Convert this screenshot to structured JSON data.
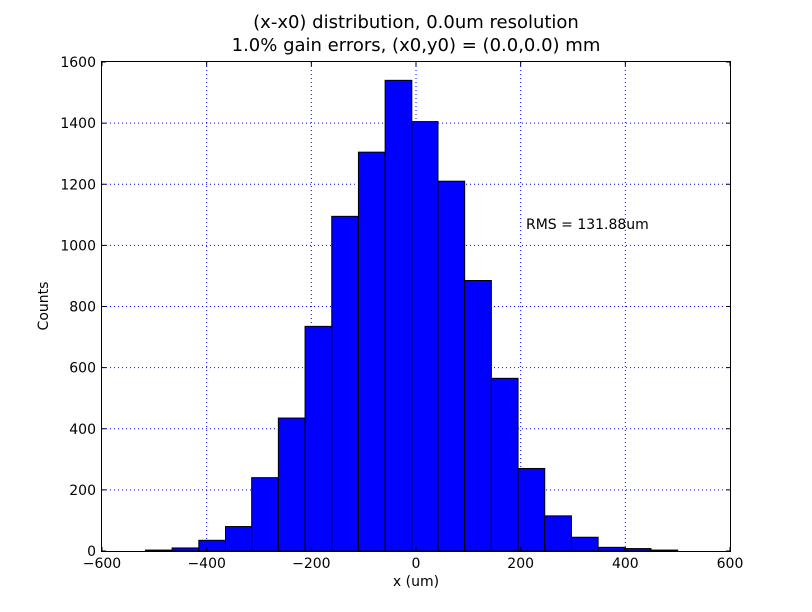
{
  "chart_data": {
    "type": "bar",
    "title": "(x-x0) distribution, 0.0um resolution",
    "subtitle": "1.0% gain errors, (x0,y0) = (0.0,0.0) mm",
    "xlabel": "x (um)",
    "ylabel": "Counts",
    "xlim": [
      -600,
      600
    ],
    "ylim": [
      0,
      1600
    ],
    "xticks": [
      -600,
      -400,
      -200,
      0,
      200,
      400,
      600
    ],
    "xtick_labels": [
      "−600",
      "−400",
      "−200",
      "0",
      "200",
      "400",
      "600"
    ],
    "yticks": [
      0,
      200,
      400,
      600,
      800,
      1000,
      1200,
      1400,
      1600
    ],
    "ytick_labels": [
      "0",
      "200",
      "400",
      "600",
      "800",
      "1000",
      "1200",
      "1400",
      "1600"
    ],
    "grid": true,
    "annotation": "RMS = 131.88um",
    "bar_color": "#0000ff",
    "bin_edges": [
      -517,
      -466,
      -415,
      -364,
      -314,
      -263,
      -212,
      -161,
      -110,
      -59,
      -8,
      42,
      93,
      144,
      195,
      246,
      297,
      348,
      398,
      449,
      500,
      551
    ],
    "values": [
      3,
      10,
      35,
      80,
      240,
      435,
      735,
      1095,
      1305,
      1540,
      1405,
      1210,
      885,
      565,
      270,
      115,
      45,
      12,
      8,
      3,
      0
    ]
  }
}
